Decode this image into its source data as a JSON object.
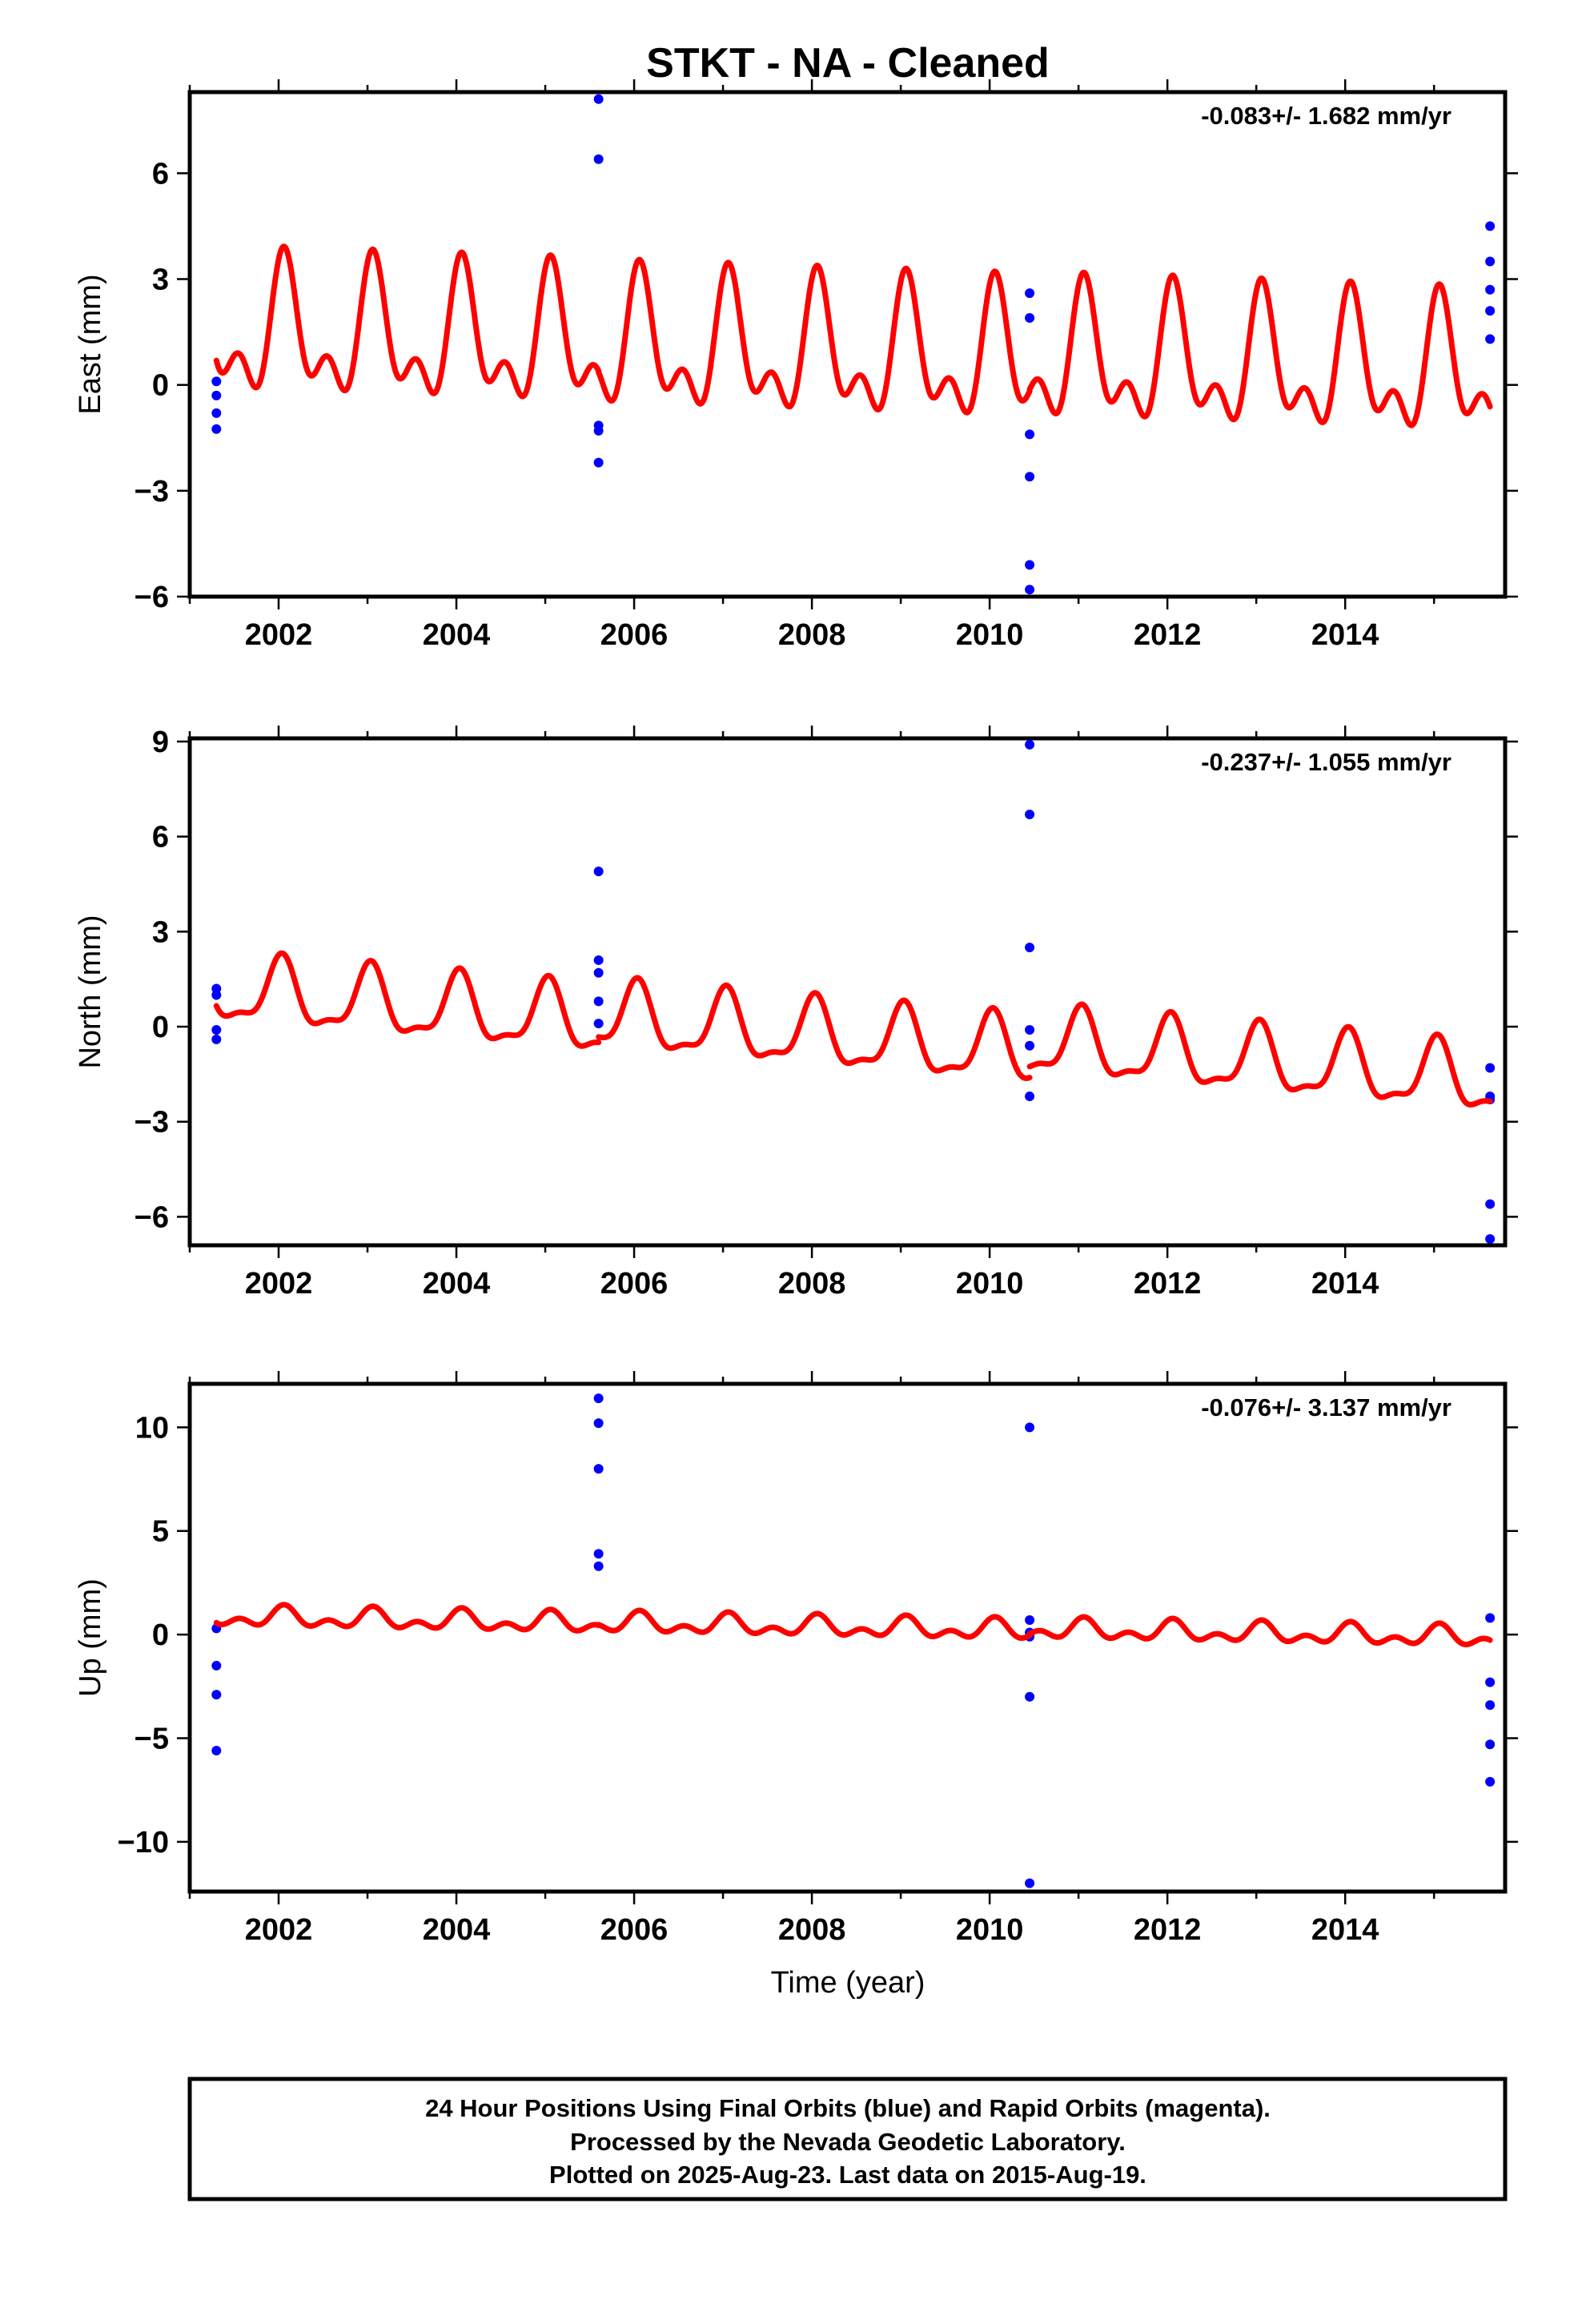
{
  "title": "STKT  - NA - Cleaned",
  "xlabel": "Time (year)",
  "colors": {
    "fit": "#ff0000",
    "points": "#0000ff",
    "frame": "#000000"
  },
  "footer": {
    "line1": "24 Hour Positions Using Final Orbits (blue) and Rapid Orbits (magenta).",
    "line2": "Processed by the Nevada Geodetic Laboratory.",
    "line3": "Plotted on 2025-Aug-23. Last data on 2015-Aug-19."
  },
  "chart_data": [
    {
      "type": "scatter",
      "title": "STKT  - NA - Cleaned",
      "ylabel": "East (mm)",
      "xlim": [
        2001.0,
        2015.8
      ],
      "ylim": [
        -6.0,
        8.3
      ],
      "xticks": [
        2002,
        2004,
        2006,
        2008,
        2010,
        2012,
        2014
      ],
      "xtick_labels": [
        "2002",
        "2004",
        "2006",
        "2008",
        "2010",
        "2012",
        "2014"
      ],
      "yticks": [
        6,
        3,
        0,
        -3,
        -6
      ],
      "ytick_labels": [
        "6",
        "3",
        "0",
        "−3",
        "−6"
      ],
      "rate_label": "-0.083+/- 1.682 mm/yr",
      "series": [
        {
          "kind": "points",
          "x": [
            2001.3,
            2001.3,
            2001.3,
            2001.3,
            2005.6,
            2005.6,
            2005.6,
            2005.6,
            2005.6,
            2010.45,
            2010.45,
            2010.45,
            2010.45,
            2010.45,
            2010.45,
            2015.63,
            2015.63,
            2015.63,
            2015.63,
            2015.63
          ],
          "y": [
            0.1,
            -0.3,
            -0.8,
            -1.25,
            8.1,
            6.4,
            -1.15,
            -1.3,
            -2.2,
            2.6,
            1.9,
            -1.4,
            -2.6,
            -5.1,
            -5.8,
            4.5,
            3.5,
            2.7,
            2.1,
            1.3
          ]
        },
        {
          "kind": "fit",
          "segments": [
            {
              "x0": 2001.3,
              "x1": 2005.6,
              "offset": 1.45,
              "rate": -0.083,
              "a1": 1.55,
              "a2": 1.0,
              "phi1": 1.1,
              "phi2": 0.9
            },
            {
              "x0": 2005.6,
              "x1": 2010.45,
              "offset": 1.05,
              "rate": -0.083,
              "a1": 1.55,
              "a2": 1.0,
              "phi1": 1.1,
              "phi2": 0.9
            },
            {
              "x0": 2010.45,
              "x1": 2015.63,
              "offset": 0.7,
              "rate": -0.083,
              "a1": 1.55,
              "a2": 1.0,
              "phi1": 1.1,
              "phi2": 0.9
            }
          ]
        }
      ]
    },
    {
      "type": "scatter",
      "ylabel": "North (mm)",
      "xlim": [
        2001.0,
        2015.8
      ],
      "ylim": [
        -6.9,
        9.1
      ],
      "xticks": [
        2002,
        2004,
        2006,
        2008,
        2010,
        2012,
        2014
      ],
      "xtick_labels": [
        "2002",
        "2004",
        "2006",
        "2008",
        "2010",
        "2012",
        "2014"
      ],
      "yticks": [
        9,
        6,
        3,
        0,
        -3,
        -6
      ],
      "ytick_labels": [
        "9",
        "6",
        "3",
        "0",
        "−3",
        "−6"
      ],
      "rate_label": "-0.237+/- 1.055 mm/yr",
      "series": [
        {
          "kind": "points",
          "x": [
            2001.3,
            2001.3,
            2001.3,
            2001.3,
            2005.6,
            2005.6,
            2005.6,
            2005.6,
            2005.6,
            2010.45,
            2010.45,
            2010.45,
            2010.45,
            2010.45,
            2010.45,
            2015.63,
            2015.63,
            2015.63,
            2015.63,
            2015.63
          ],
          "y": [
            1.2,
            1.0,
            -0.1,
            -0.4,
            4.9,
            2.1,
            1.7,
            0.8,
            0.1,
            8.9,
            6.7,
            2.5,
            -0.1,
            -0.6,
            -2.2,
            -1.3,
            -2.2,
            -2.3,
            -5.6,
            -6.7
          ]
        },
        {
          "kind": "fit",
          "segments": [
            {
              "x0": 2001.3,
              "x1": 2005.6,
              "offset": 1.15,
              "rate": -0.237,
              "a1": 1.0,
              "a2": 0.35,
              "phi1": 1.4,
              "phi2": 1.0
            },
            {
              "x0": 2005.6,
              "x1": 2010.45,
              "offset": 0.3,
              "rate": -0.237,
              "a1": 1.0,
              "a2": 0.35,
              "phi1": 1.4,
              "phi2": 1.0
            },
            {
              "x0": 2010.45,
              "x1": 2015.63,
              "offset": -0.5,
              "rate": -0.237,
              "a1": 1.0,
              "a2": 0.35,
              "phi1": 1.4,
              "phi2": 1.0
            }
          ]
        }
      ]
    },
    {
      "type": "scatter",
      "ylabel": "Up (mm)",
      "xlim": [
        2001.0,
        2015.8
      ],
      "ylim": [
        -12.4,
        12.1
      ],
      "xticks": [
        2002,
        2004,
        2006,
        2008,
        2010,
        2012,
        2014
      ],
      "xtick_labels": [
        "2002",
        "2004",
        "2006",
        "2008",
        "2010",
        "2012",
        "2014"
      ],
      "yticks": [
        10,
        5,
        0,
        -5,
        -10
      ],
      "ytick_labels": [
        "10",
        "5",
        "0",
        "−5",
        "−10"
      ],
      "rate_label": "-0.076+/- 3.137 mm/yr",
      "series": [
        {
          "kind": "points",
          "x": [
            2001.3,
            2001.3,
            2001.3,
            2001.3,
            2005.6,
            2005.6,
            2005.6,
            2005.6,
            2005.6,
            2010.45,
            2010.45,
            2010.45,
            2010.45,
            2010.45,
            2010.45,
            2015.63,
            2015.63,
            2015.63,
            2015.63,
            2015.63
          ],
          "y": [
            0.3,
            -1.5,
            -2.9,
            -5.6,
            11.4,
            10.2,
            8.0,
            3.9,
            3.3,
            10.0,
            0.7,
            0.1,
            -0.1,
            -3.0,
            -12.0,
            0.8,
            -2.3,
            -3.4,
            -5.3,
            -7.1
          ]
        },
        {
          "kind": "fit",
          "segments": [
            {
              "x0": 2001.3,
              "x1": 2005.6,
              "offset": 0.85,
              "rate": -0.076,
              "a1": 0.35,
              "a2": 0.3,
              "phi1": 1.2,
              "phi2": 0.8
            },
            {
              "x0": 2005.6,
              "x1": 2010.45,
              "offset": 0.55,
              "rate": -0.076,
              "a1": 0.35,
              "a2": 0.3,
              "phi1": 1.2,
              "phi2": 0.8
            },
            {
              "x0": 2010.45,
              "x1": 2015.63,
              "offset": 0.25,
              "rate": -0.076,
              "a1": 0.35,
              "a2": 0.3,
              "phi1": 1.2,
              "phi2": 0.8
            }
          ]
        }
      ]
    }
  ]
}
